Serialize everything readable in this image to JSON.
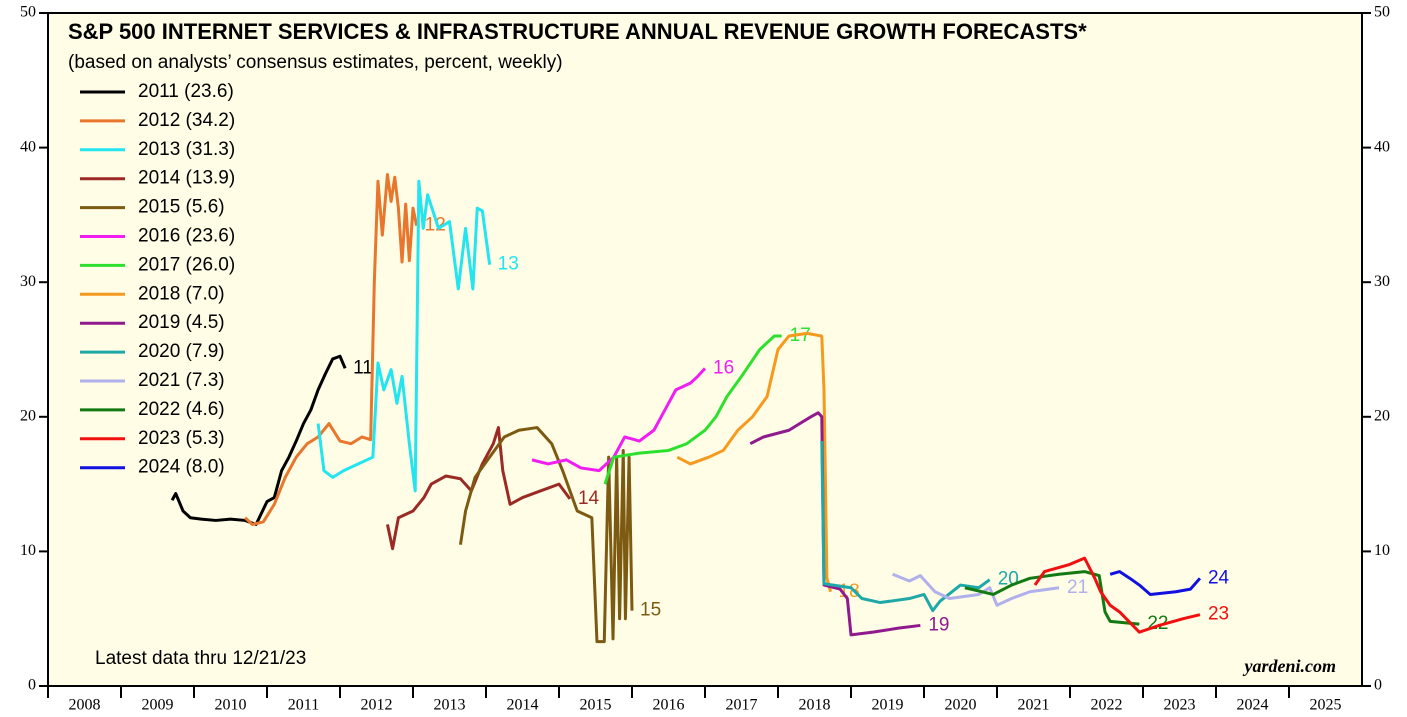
{
  "chart_data": {
    "type": "line",
    "title": "S&P 500 INTERNET SERVICES & INFRASTRUCTURE ANNUAL REVENUE GROWTH FORECASTS*",
    "subtitle": "(based on analysts’ consensus estimates, percent, weekly)",
    "note": "Latest data thru 12/21/23",
    "source": "yardeni.com",
    "xlim": [
      2008,
      2026
    ],
    "xticks": [
      2008,
      2009,
      2010,
      2011,
      2012,
      2013,
      2014,
      2015,
      2016,
      2017,
      2018,
      2019,
      2020,
      2021,
      2022,
      2023,
      2024,
      2025
    ],
    "ylim": [
      0,
      50
    ],
    "yticks": [
      0,
      10,
      20,
      30,
      40,
      50
    ],
    "legend": "top-left",
    "series": [
      {
        "name": "2011 (23.6)",
        "label": "11",
        "color": "#000000",
        "x": [
          2009.7,
          2009.75,
          2009.85,
          2009.95,
          2010.1,
          2010.3,
          2010.5,
          2010.7,
          2010.85,
          2011.0,
          2011.1,
          2011.2,
          2011.3,
          2011.4,
          2011.5,
          2011.6,
          2011.7,
          2011.8,
          2011.9,
          2012.0,
          2012.07
        ],
        "values": [
          13.8,
          14.3,
          13.0,
          12.5,
          12.4,
          12.3,
          12.4,
          12.3,
          12.0,
          13.7,
          14.0,
          16.0,
          17.0,
          18.2,
          19.5,
          20.5,
          22.0,
          23.2,
          24.3,
          24.5,
          23.6
        ]
      },
      {
        "name": "2012 (34.2)",
        "label": "12",
        "color": "#e8762d",
        "x": [
          2010.7,
          2010.8,
          2010.95,
          2011.1,
          2011.25,
          2011.4,
          2011.55,
          2011.7,
          2011.85,
          2012.0,
          2012.15,
          2012.3,
          2012.42,
          2012.47,
          2012.52,
          2012.58,
          2012.65,
          2012.7,
          2012.75,
          2012.8,
          2012.85,
          2012.9,
          2012.95,
          2013.0,
          2013.05
        ],
        "values": [
          12.5,
          12.0,
          12.2,
          13.5,
          15.5,
          17.0,
          18.0,
          18.5,
          19.5,
          18.2,
          18.0,
          18.5,
          18.3,
          30.0,
          37.5,
          33.5,
          38.0,
          36.0,
          37.8,
          35.5,
          31.5,
          35.8,
          31.6,
          35.5,
          34.2
        ]
      },
      {
        "name": "2013 (31.3)",
        "label": "13",
        "color": "#22e5f0",
        "x": [
          2011.7,
          2011.78,
          2011.9,
          2012.05,
          2012.25,
          2012.45,
          2012.52,
          2012.6,
          2012.7,
          2012.78,
          2012.85,
          2012.95,
          2013.03,
          2013.08,
          2013.14,
          2013.2,
          2013.35,
          2013.5,
          2013.62,
          2013.72,
          2013.82,
          2013.88,
          2013.95,
          2014.05
        ],
        "values": [
          19.5,
          16.0,
          15.5,
          16.0,
          16.5,
          17.0,
          24.0,
          22.0,
          23.5,
          21.0,
          23.0,
          18.0,
          14.5,
          37.5,
          34.0,
          36.5,
          34.0,
          34.5,
          29.5,
          34.0,
          29.5,
          35.5,
          35.3,
          31.3
        ]
      },
      {
        "name": "2014 (13.9)",
        "label": "14",
        "color": "#9b2a24",
        "x": [
          2012.65,
          2012.72,
          2012.8,
          2013.0,
          2013.15,
          2013.25,
          2013.45,
          2013.65,
          2013.8,
          2013.95,
          2014.1,
          2014.17,
          2014.23,
          2014.33,
          2014.5,
          2014.75,
          2015.0,
          2015.15
        ],
        "values": [
          12.0,
          10.2,
          12.5,
          13.0,
          14.0,
          15.0,
          15.6,
          15.4,
          14.5,
          16.5,
          18.0,
          19.2,
          16.0,
          13.5,
          14.0,
          14.5,
          15.0,
          13.9
        ]
      },
      {
        "name": "2015 (5.6)",
        "label": "15",
        "color": "#7d5a12",
        "x": [
          2013.65,
          2013.72,
          2013.85,
          2014.05,
          2014.25,
          2014.45,
          2014.7,
          2014.9,
          2015.05,
          2015.25,
          2015.45,
          2015.52,
          2015.62,
          2015.68,
          2015.74,
          2015.79,
          2015.83,
          2015.88,
          2015.91,
          2015.96,
          2016.0
        ],
        "values": [
          10.5,
          13.0,
          15.5,
          17.0,
          18.5,
          19.0,
          19.2,
          18.0,
          16.0,
          13.0,
          12.5,
          3.3,
          3.3,
          17.0,
          3.5,
          17.0,
          5.0,
          17.5,
          5.0,
          17.0,
          5.6
        ]
      },
      {
        "name": "2016 (23.6)",
        "label": "16",
        "color": "#f01ef0",
        "x": [
          2014.63,
          2014.85,
          2015.1,
          2015.3,
          2015.55,
          2015.75,
          2015.9,
          2016.1,
          2016.3,
          2016.45,
          2016.6,
          2016.8,
          2016.9,
          2017.0
        ],
        "values": [
          16.8,
          16.5,
          16.8,
          16.2,
          16.0,
          17.0,
          18.5,
          18.2,
          19.0,
          20.5,
          22.0,
          22.5,
          23.0,
          23.6
        ]
      },
      {
        "name": "2017 (26.0)",
        "label": "17",
        "color": "#2ee02e",
        "x": [
          2015.63,
          2015.75,
          2016.1,
          2016.5,
          2016.75,
          2017.0,
          2017.15,
          2017.3,
          2017.5,
          2017.75,
          2017.95,
          2018.05
        ],
        "values": [
          15.0,
          17.0,
          17.3,
          17.5,
          18.0,
          19.0,
          20.0,
          21.5,
          23.0,
          25.0,
          26.0,
          26.0
        ]
      },
      {
        "name": "2018 (7.0)",
        "label": "18",
        "color": "#f59a1e",
        "x": [
          2016.62,
          2016.8,
          2017.05,
          2017.25,
          2017.45,
          2017.65,
          2017.85,
          2018.0,
          2018.15,
          2018.4,
          2018.6,
          2018.63,
          2018.67,
          2018.72
        ],
        "values": [
          17.0,
          16.5,
          17.0,
          17.5,
          19.0,
          20.0,
          21.5,
          25.0,
          26.0,
          26.2,
          26.0,
          22.0,
          8.0,
          7.0
        ]
      },
      {
        "name": "2019 (4.5)",
        "label": "19",
        "color": "#8e1a8e",
        "x": [
          2017.62,
          2017.8,
          2018.15,
          2018.3,
          2018.45,
          2018.55,
          2018.6,
          2018.63,
          2018.85,
          2018.95,
          2019.0,
          2019.3,
          2019.65,
          2019.95
        ],
        "values": [
          18.0,
          18.5,
          19.0,
          19.5,
          20.0,
          20.3,
          20.0,
          7.5,
          7.2,
          6.5,
          3.8,
          4.0,
          4.3,
          4.5
        ]
      },
      {
        "name": "2020 (7.9)",
        "label": "20",
        "color": "#1fa8a8",
        "x": [
          2018.6,
          2018.63,
          2019.0,
          2019.15,
          2019.4,
          2019.8,
          2020.0,
          2020.12,
          2020.22,
          2020.5,
          2020.75,
          2020.9
        ],
        "values": [
          18.2,
          7.6,
          7.3,
          6.5,
          6.2,
          6.5,
          6.8,
          5.6,
          6.3,
          7.5,
          7.3,
          7.9
        ]
      },
      {
        "name": "2021 (7.3)",
        "label": "21",
        "color": "#b0b0ec",
        "x": [
          2019.57,
          2019.8,
          2019.95,
          2020.15,
          2020.35,
          2020.75,
          2020.9,
          2021.0,
          2021.2,
          2021.45,
          2021.85
        ],
        "values": [
          8.3,
          7.8,
          8.2,
          7.0,
          6.5,
          6.8,
          7.3,
          6.0,
          6.5,
          7.0,
          7.3
        ]
      },
      {
        "name": "2022 (4.6)",
        "label": "22",
        "color": "#137a13",
        "x": [
          2020.56,
          2020.95,
          2021.2,
          2021.45,
          2021.85,
          2022.2,
          2022.4,
          2022.48,
          2022.55,
          2022.95
        ],
        "values": [
          7.3,
          6.8,
          7.5,
          8.0,
          8.3,
          8.5,
          8.2,
          5.5,
          4.8,
          4.6
        ]
      },
      {
        "name": "2023 (5.3)",
        "label": "23",
        "color": "#f01010",
        "x": [
          2021.52,
          2021.65,
          2021.98,
          2022.2,
          2022.34,
          2022.42,
          2022.55,
          2022.68,
          2022.95,
          2023.22,
          2023.55,
          2023.78
        ],
        "values": [
          7.5,
          8.5,
          9.0,
          9.5,
          8.0,
          7.0,
          6.0,
          5.5,
          4.0,
          4.5,
          5.0,
          5.3
        ]
      },
      {
        "name": "2024 (8.0)",
        "label": "24",
        "color": "#1010e0",
        "x": [
          2022.55,
          2022.68,
          2022.82,
          2022.95,
          2023.1,
          2023.45,
          2023.65,
          2023.78
        ],
        "values": [
          8.3,
          8.5,
          8.0,
          7.5,
          6.8,
          7.0,
          7.2,
          8.0
        ]
      }
    ]
  }
}
